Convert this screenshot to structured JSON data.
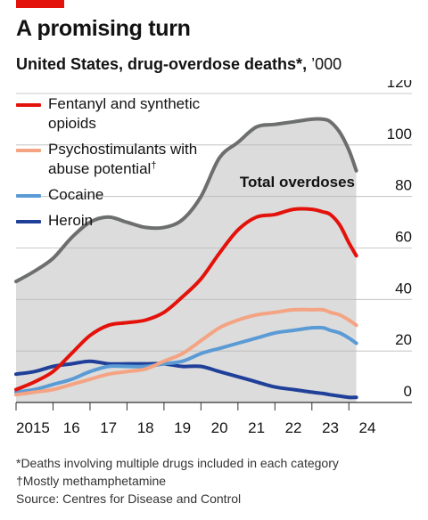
{
  "header": {
    "title": "A promising turn",
    "subtitle_bold": "United States, drug-overdose deaths*,",
    "subtitle_unit": "’000"
  },
  "colors": {
    "accent_tag": "#e3120b",
    "fentanyl": "#e3120b",
    "psychostimulants": "#f4a383",
    "cocaine": "#5b9bd5",
    "heroin": "#1f3f99",
    "total": "#6d6e6e",
    "total_fill": "#dcdcdc"
  },
  "footnotes": {
    "asterisk": "*Deaths involving multiple drugs included in each category",
    "dagger": "†Mostly methamphetamine",
    "source": "Source: Centres for Disease and Control"
  },
  "chart_data": {
    "type": "line",
    "title": "A promising turn",
    "subtitle": "United States, drug-overdose deaths*, ’000",
    "ylim": [
      0,
      120
    ],
    "yticks": [
      "0",
      "20",
      "40",
      "60",
      "80",
      "100",
      "120"
    ],
    "xlim": [
      2015,
      2024.5
    ],
    "xtick_labels": [
      "2015",
      "16",
      "17",
      "18",
      "19",
      "20",
      "21",
      "22",
      "23",
      "24"
    ],
    "grid": "horizontal",
    "legend_position": "top-left",
    "x": [
      2015.0,
      2015.5,
      2016.0,
      2016.5,
      2017.0,
      2017.5,
      2018.0,
      2018.5,
      2019.0,
      2019.5,
      2020.0,
      2020.5,
      2021.0,
      2021.5,
      2022.0,
      2022.5,
      2023.0,
      2023.3,
      2023.5,
      2023.75,
      2024.0,
      2024.2
    ],
    "series": [
      {
        "name": "Total overdoses",
        "key": "total",
        "area": true,
        "values": [
          47,
          51,
          56,
          64,
          70,
          72,
          70,
          68,
          68,
          71,
          80,
          95,
          101,
          107,
          108,
          109,
          110,
          110,
          109,
          105,
          98,
          90
        ]
      },
      {
        "name": "Fentanyl and synthetic opioids",
        "key": "fentanyl",
        "values": [
          5,
          8,
          12,
          19,
          26,
          30,
          31,
          32,
          35,
          41,
          48,
          58,
          67,
          72,
          73,
          75,
          75,
          74,
          73,
          69,
          62,
          57
        ]
      },
      {
        "name": "Psychostimulants with abuse potential†",
        "key": "psychostimulants",
        "values": [
          3,
          4,
          5,
          7,
          9,
          11,
          12,
          13,
          16,
          19,
          24,
          29,
          32,
          34,
          35,
          36,
          36,
          36,
          35,
          34,
          32,
          30
        ]
      },
      {
        "name": "Cocaine",
        "key": "cocaine",
        "values": [
          4,
          5,
          7,
          9,
          12,
          14,
          14,
          14,
          15,
          16,
          19,
          21,
          23,
          25,
          27,
          28,
          29,
          29,
          28,
          27,
          25,
          23
        ]
      },
      {
        "name": "Heroin",
        "key": "heroin",
        "values": [
          11,
          12,
          14,
          15,
          16,
          15,
          15,
          15,
          15,
          14,
          14,
          12,
          10,
          8,
          6,
          5,
          4,
          3.5,
          3,
          2.5,
          2,
          2
        ]
      }
    ],
    "annotations": [
      {
        "text": "Total overdoses",
        "series": "total"
      }
    ]
  }
}
